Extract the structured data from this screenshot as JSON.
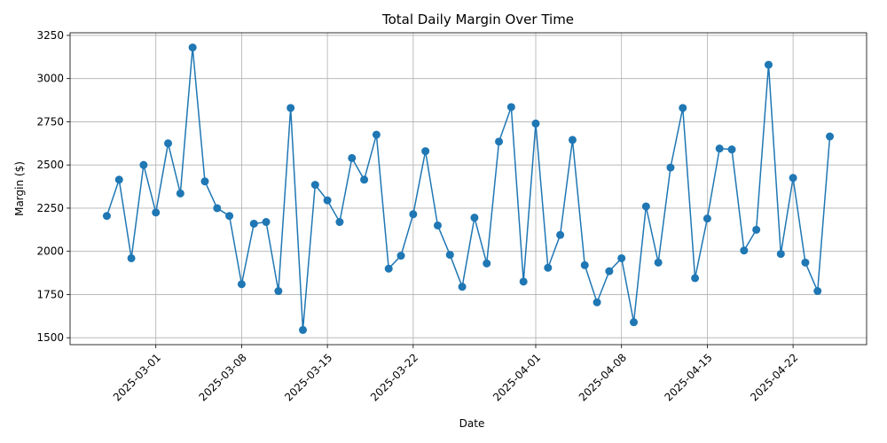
{
  "chart_data": {
    "type": "line",
    "title": "Total Daily Margin Over Time",
    "xlabel": "Date",
    "ylabel": "Margin ($)",
    "x_tick_labels": [
      "2025-03-01",
      "2025-03-08",
      "2025-03-15",
      "2025-03-22",
      "2025-04-01",
      "2025-04-08",
      "2025-04-15",
      "2025-04-22"
    ],
    "y_tick_labels": [
      "1500",
      "1750",
      "2000",
      "2250",
      "2500",
      "2750",
      "3000",
      "3250"
    ],
    "ylim": [
      1460,
      3265
    ],
    "xlim": [
      "2025-02-22",
      "2025-04-28"
    ],
    "grid": true,
    "legend": "none",
    "color": "#1f77b4",
    "series": [
      {
        "x": [
          "2025-02-25",
          "2025-02-26",
          "2025-02-27",
          "2025-02-28",
          "2025-03-01",
          "2025-03-02",
          "2025-03-03",
          "2025-03-04",
          "2025-03-05",
          "2025-03-06",
          "2025-03-07",
          "2025-03-08",
          "2025-03-09",
          "2025-03-10",
          "2025-03-11",
          "2025-03-12",
          "2025-03-13",
          "2025-03-14",
          "2025-03-15",
          "2025-03-16",
          "2025-03-17",
          "2025-03-18",
          "2025-03-19",
          "2025-03-20",
          "2025-03-21",
          "2025-03-22",
          "2025-03-23",
          "2025-03-24",
          "2025-03-25",
          "2025-03-26",
          "2025-03-27",
          "2025-03-28",
          "2025-03-29",
          "2025-03-30",
          "2025-03-31",
          "2025-04-01",
          "2025-04-02",
          "2025-04-03",
          "2025-04-04",
          "2025-04-05",
          "2025-04-06",
          "2025-04-07",
          "2025-04-08",
          "2025-04-09",
          "2025-04-10",
          "2025-04-11",
          "2025-04-12",
          "2025-04-13",
          "2025-04-14",
          "2025-04-15",
          "2025-04-16",
          "2025-04-17",
          "2025-04-18",
          "2025-04-19",
          "2025-04-20",
          "2025-04-21",
          "2025-04-22",
          "2025-04-23",
          "2025-04-24",
          "2025-04-25"
        ],
        "y": [
          2205,
          2415,
          1960,
          2500,
          2225,
          2625,
          2335,
          3180,
          2405,
          2250,
          2205,
          1810,
          2160,
          2170,
          1770,
          2830,
          1545,
          2385,
          2295,
          2170,
          2540,
          2415,
          2675,
          1900,
          1975,
          2215,
          2580,
          2150,
          1980,
          1795,
          2195,
          1930,
          2635,
          2835,
          1825,
          2740,
          1905,
          2095,
          2645,
          1920,
          1705,
          1885,
          1960,
          1590,
          2260,
          1935,
          2485,
          2830,
          1845,
          2190,
          2595,
          2590,
          2005,
          2125,
          3080,
          1985,
          2425,
          1935,
          1770,
          2665
        ]
      }
    ]
  }
}
